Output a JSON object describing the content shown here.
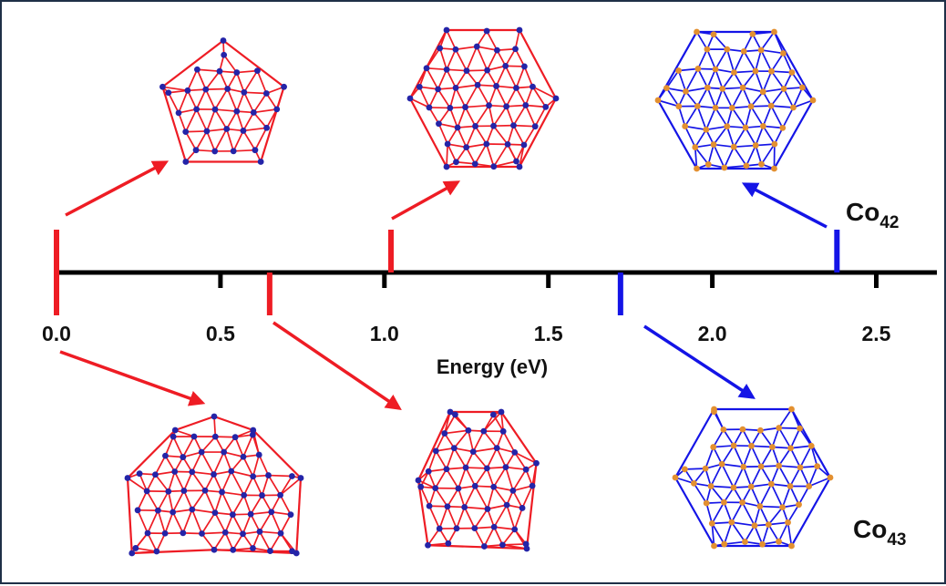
{
  "axis": {
    "title": "Energy (eV)",
    "range": [
      0.0,
      2.7
    ],
    "ticks": [
      "0.0",
      "0.5",
      "1.0",
      "1.5",
      "2.0",
      "2.5"
    ],
    "tick_values": [
      0.0,
      0.5,
      1.0,
      1.5,
      2.0,
      2.5
    ]
  },
  "species": {
    "top": {
      "base": "Co",
      "sub": "42"
    },
    "bottom": {
      "base": "Co",
      "sub": "43"
    }
  },
  "colors": {
    "axis": "#000000",
    "red": "#ee1c24",
    "blue": "#1414e6",
    "node_red_struct": "#2424a8",
    "node_blue_struct": "#e39030",
    "frame": "#1f3047"
  },
  "isomers": [
    {
      "id": "co42-a",
      "species": "Co42",
      "energy": 0.0,
      "color": "red",
      "side": "top",
      "shape": "pentagonal"
    },
    {
      "id": "co42-b",
      "species": "Co42",
      "energy": 1.02,
      "color": "red",
      "side": "top",
      "shape": "hexagonal"
    },
    {
      "id": "co42-c",
      "species": "Co42",
      "energy": 2.38,
      "color": "blue",
      "side": "top",
      "shape": "hexagonal"
    },
    {
      "id": "co43-a",
      "species": "Co43",
      "energy": 0.0,
      "color": "red",
      "side": "bottom",
      "shape": "dome"
    },
    {
      "id": "co43-b",
      "species": "Co43",
      "energy": 0.65,
      "color": "red",
      "side": "bottom",
      "shape": "tall"
    },
    {
      "id": "co43-c",
      "species": "Co43",
      "energy": 1.72,
      "color": "blue",
      "side": "bottom",
      "shape": "hexagonal"
    }
  ]
}
